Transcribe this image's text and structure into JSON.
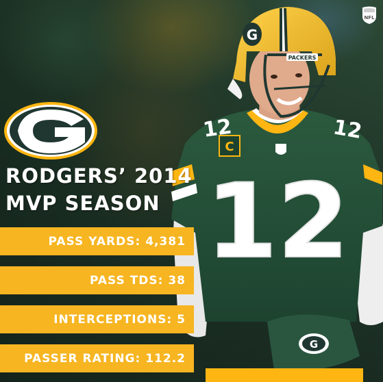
{
  "headline": {
    "line1": "RODGERS’ 2014",
    "line2": "MVP SEASON"
  },
  "stats": [
    {
      "label": "PASS YARDS: 4,381"
    },
    {
      "label": "PASS TDS: 38"
    },
    {
      "label": "INTERCEPTIONS: 5"
    },
    {
      "label": "PASSER RATING: 112.2"
    }
  ],
  "jersey": {
    "number": "12",
    "helmet_brand": "PACKERS",
    "captain_patch": "C"
  },
  "nfl_logo_text": "NFL",
  "colors": {
    "packers_green": "#203731",
    "packers_gold": "#ffb612",
    "stat_bar": "#f6b521",
    "text": "#ffffff"
  },
  "icons": {
    "team_logo": "packers-g-logo",
    "league_logo": "nfl-shield-icon"
  }
}
